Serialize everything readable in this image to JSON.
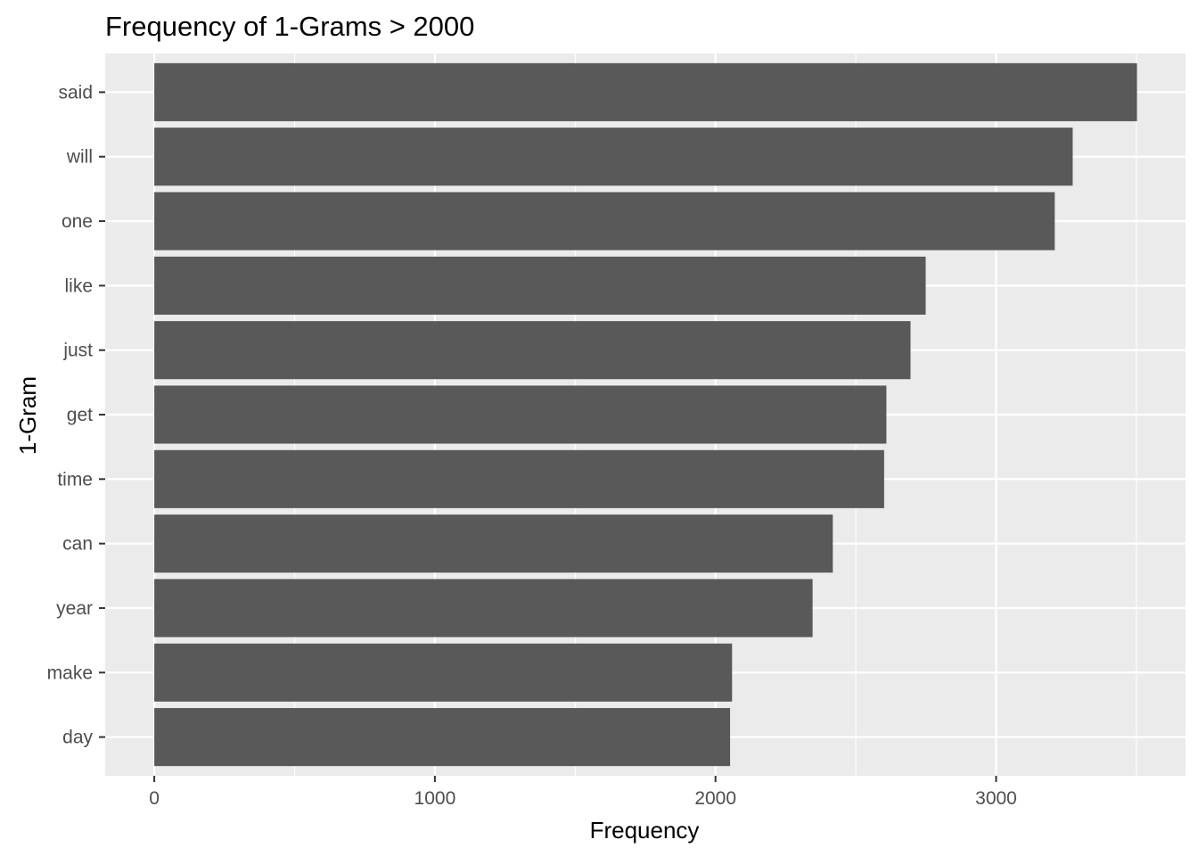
{
  "chart_data": {
    "type": "bar",
    "orientation": "horizontal",
    "title": "Frequency of 1-Grams > 2000",
    "xlabel": "Frequency",
    "ylabel": "1-Gram",
    "categories": [
      "said",
      "will",
      "one",
      "like",
      "just",
      "get",
      "time",
      "can",
      "year",
      "make",
      "day"
    ],
    "values": [
      3502,
      3273,
      3209,
      2749,
      2695,
      2609,
      2601,
      2418,
      2346,
      2059,
      2052
    ],
    "xlim": [
      -175,
      3675
    ],
    "xticks": [
      0,
      1000,
      2000,
      3000
    ],
    "x_tick_labels": [
      "0",
      "1000",
      "2000",
      "3000"
    ],
    "grid": true,
    "colors": {
      "bar": "#595959",
      "panel": "#ebebeb",
      "grid": "#ffffff",
      "tick_text": "#4d4d4d"
    }
  }
}
